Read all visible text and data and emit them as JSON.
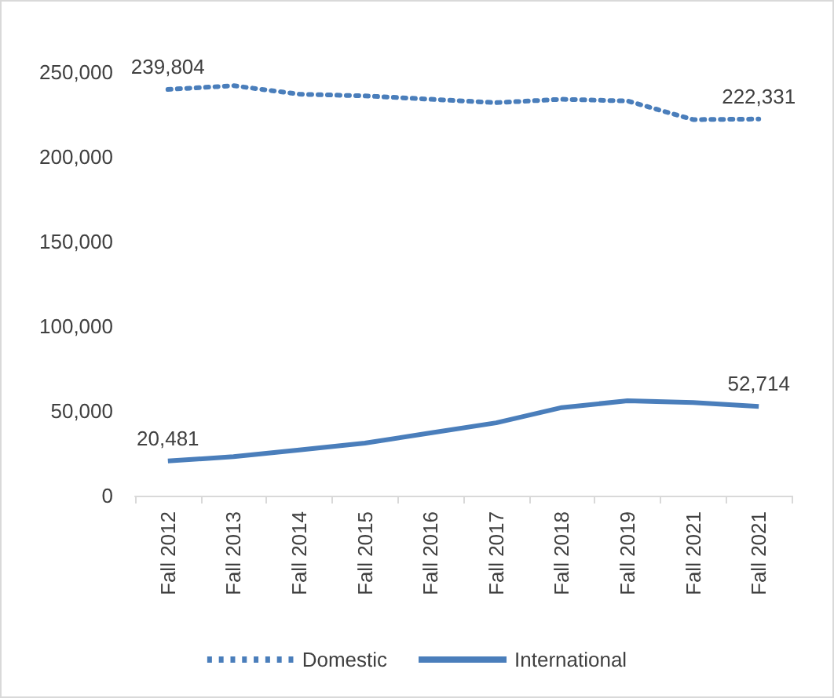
{
  "chart_data": {
    "type": "line",
    "categories": [
      "Fall 2012",
      "Fall 2013",
      "Fall 2014",
      "Fall 2015",
      "Fall 2016",
      "Fall 2017",
      "Fall 2018",
      "Fall 2019",
      "Fall 2021",
      "Fall 2021"
    ],
    "series": [
      {
        "name": "Domestic",
        "color": "#4a7ebb",
        "line_style": "dotted",
        "values": [
          239804,
          242000,
          237000,
          236000,
          234000,
          232000,
          234000,
          233000,
          222000,
          222331
        ],
        "value_labels": [
          "239,804",
          null,
          null,
          null,
          null,
          null,
          null,
          null,
          null,
          "222,331"
        ]
      },
      {
        "name": "International",
        "color": "#4a7ebb",
        "line_style": "solid",
        "values": [
          20481,
          23000,
          27000,
          31000,
          37000,
          43000,
          52000,
          56000,
          55000,
          52714
        ],
        "value_labels": [
          "20,481",
          null,
          null,
          null,
          null,
          null,
          null,
          null,
          null,
          "52,714"
        ]
      }
    ],
    "ylim": [
      0,
      250000
    ],
    "yticks": [
      0,
      {
        "value": 50000,
        "label": "50,000"
      },
      {
        "value": 100000,
        "label": "100,000"
      },
      {
        "value": 150000,
        "label": "150,000"
      },
      {
        "value": 200000,
        "label": "200,000"
      },
      {
        "value": 250000,
        "label": "250,000"
      }
    ],
    "grid": false,
    "legend": "bottom",
    "marker": "none"
  }
}
